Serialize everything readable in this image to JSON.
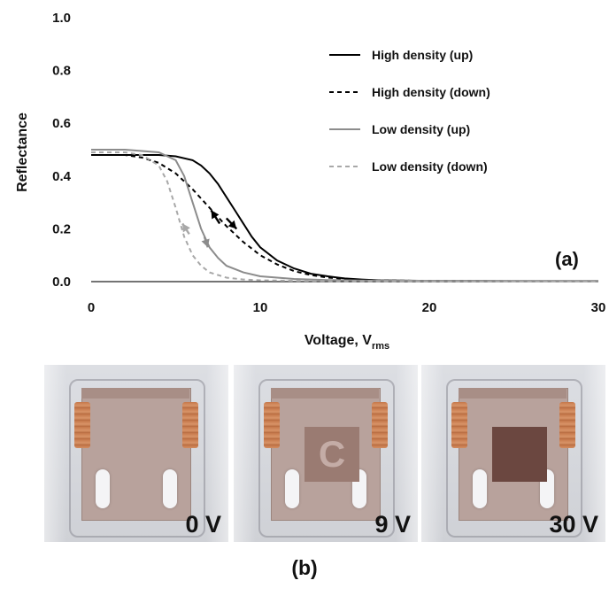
{
  "chart_data": {
    "type": "line",
    "xlabel_main": "Voltage, V",
    "xlabel_sub": "rms",
    "ylabel": "Reflectance",
    "xlim": [
      0,
      30
    ],
    "ylim": [
      0.0,
      1.0
    ],
    "x_ticks": [
      "0",
      "10",
      "20",
      "30"
    ],
    "y_ticks": [
      "0.0",
      "0.2",
      "0.4",
      "0.6",
      "0.8",
      "1.0"
    ],
    "grid": false,
    "legend_position": "top-right",
    "panel_label": "(a)",
    "series": [
      {
        "name": "High density  (up)",
        "color": "#000000",
        "dash": "solid",
        "x": [
          0,
          2,
          4,
          5,
          6,
          6.5,
          7,
          7.5,
          8,
          8.5,
          9,
          9.5,
          10,
          11,
          12,
          13,
          14,
          15,
          16,
          17,
          20,
          25,
          30
        ],
        "y": [
          0.48,
          0.48,
          0.48,
          0.475,
          0.46,
          0.44,
          0.41,
          0.37,
          0.32,
          0.27,
          0.22,
          0.17,
          0.13,
          0.08,
          0.05,
          0.03,
          0.02,
          0.012,
          0.008,
          0.005,
          0.003,
          0.002,
          0.002
        ]
      },
      {
        "name": "High density (down)",
        "color": "#000000",
        "dash": "dashed",
        "x": [
          0,
          2,
          3,
          4,
          5,
          6,
          7,
          8,
          9,
          10,
          11,
          12,
          13,
          14,
          15,
          16,
          18,
          20,
          25,
          30
        ],
        "y": [
          0.48,
          0.48,
          0.47,
          0.45,
          0.41,
          0.35,
          0.28,
          0.21,
          0.15,
          0.1,
          0.065,
          0.04,
          0.025,
          0.015,
          0.01,
          0.006,
          0.004,
          0.003,
          0.002,
          0.002
        ]
      },
      {
        "name": "Low density (up)",
        "color": "#8c8c8c",
        "dash": "solid",
        "x": [
          0,
          2,
          4,
          5,
          5.5,
          6,
          6.5,
          7,
          7.5,
          8,
          9,
          10,
          12,
          14,
          16,
          20,
          25,
          30
        ],
        "y": [
          0.5,
          0.5,
          0.49,
          0.46,
          0.4,
          0.3,
          0.2,
          0.13,
          0.09,
          0.06,
          0.035,
          0.02,
          0.01,
          0.006,
          0.004,
          0.003,
          0.002,
          0.002
        ]
      },
      {
        "name": "Low density (down)",
        "color": "#a8a8a8",
        "dash": "dashed",
        "x": [
          0,
          2,
          3,
          4,
          4.5,
          5,
          5.5,
          6,
          6.5,
          7,
          8,
          9,
          10,
          12,
          15,
          20,
          25,
          30
        ],
        "y": [
          0.49,
          0.49,
          0.48,
          0.44,
          0.38,
          0.28,
          0.17,
          0.1,
          0.06,
          0.035,
          0.015,
          0.008,
          0.005,
          0.003,
          0.002,
          0.002,
          0.002,
          0.002
        ]
      }
    ]
  },
  "colors": {
    "high_density": "#000000",
    "low_density_up": "#8c8c8c",
    "low_density_down": "#a8a8a8"
  },
  "photos": [
    {
      "voltage": "0 V",
      "state": "clear"
    },
    {
      "voltage": "9 V",
      "state": "letter"
    },
    {
      "voltage": "30 V",
      "state": "dark"
    }
  ],
  "photo_letter": "C",
  "panel_b_label": "(b)"
}
